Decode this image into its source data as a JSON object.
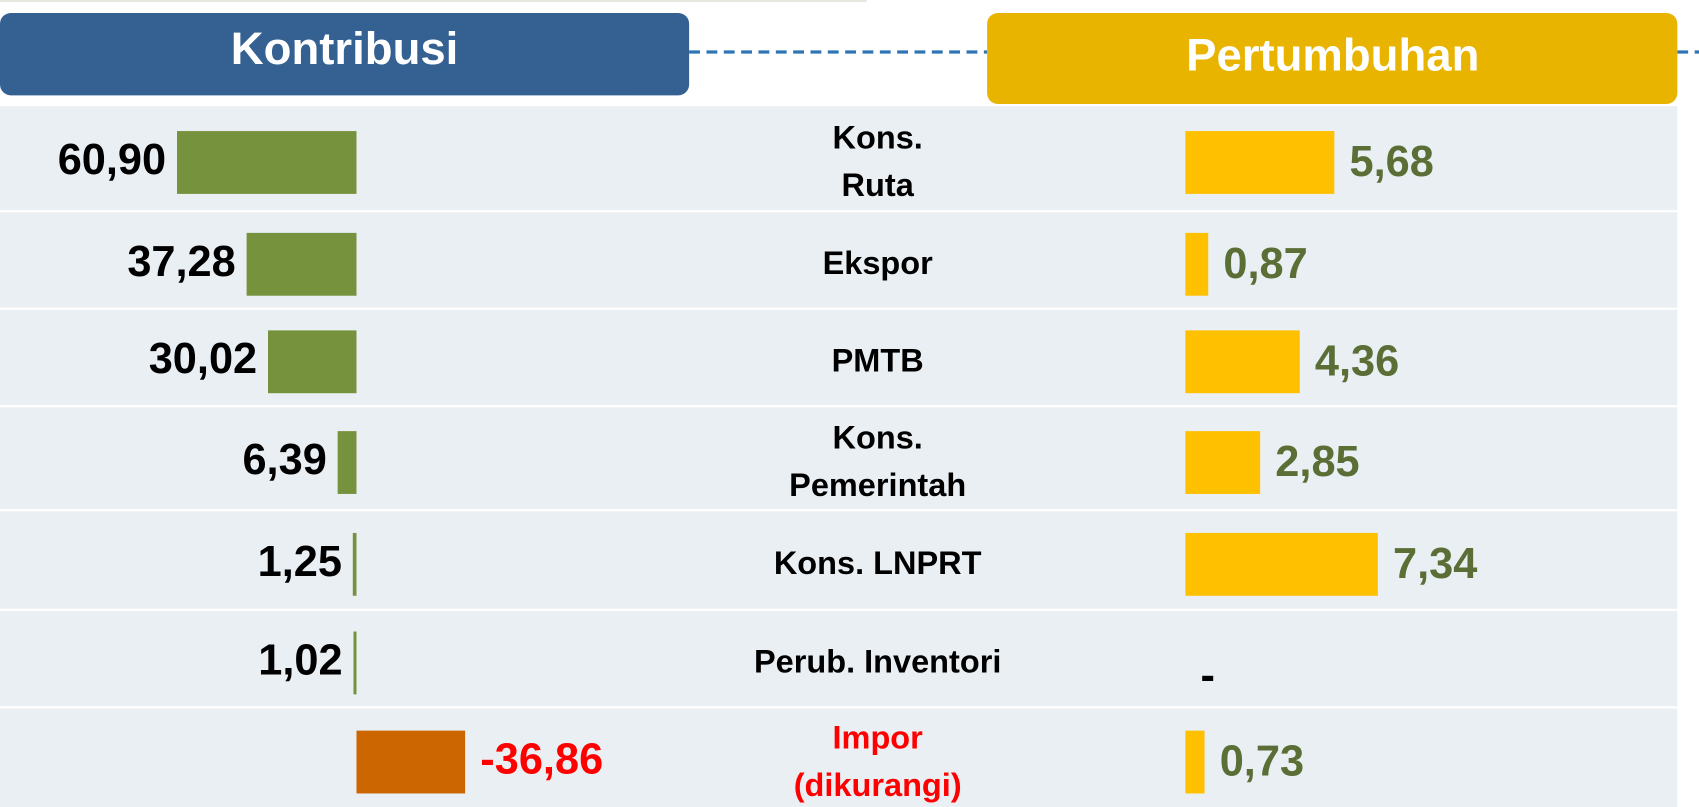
{
  "chart_data": {
    "type": "bar",
    "categories": [
      "Kons.\nRuta",
      "Ekspor",
      "PMTB",
      "Kons.\nPemerintah",
      "Kons. LNPRT",
      "Perub. Inventori",
      "Impor\n(dikurangi)"
    ],
    "series": [
      {
        "name": "Kontribusi",
        "color": "#76923c",
        "negative_color": "#cc6600",
        "negative_label_color": "#ff0000",
        "header_color": "#356092",
        "values": [
          60.9,
          37.28,
          30.02,
          6.39,
          1.25,
          1.02,
          -36.86
        ],
        "value_labels": [
          "60,90",
          "37,28",
          "30,02",
          "6,39",
          "1,25",
          "1,02",
          "-36,86"
        ]
      },
      {
        "name": "Pertumbuhan",
        "color": "#ffc000",
        "label_color": "#5a6e35",
        "header_color": "#e8b400",
        "values": [
          5.68,
          0.87,
          4.36,
          2.85,
          7.34,
          null,
          0.73
        ],
        "value_labels": [
          "5,68",
          "0,87",
          "4,36",
          "2,85",
          "7,34",
          "-",
          "0,73"
        ]
      }
    ]
  }
}
